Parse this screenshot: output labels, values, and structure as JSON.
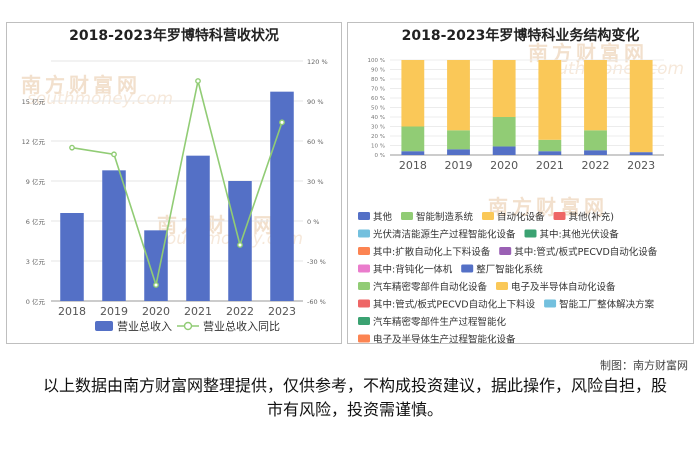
{
  "watermark": {
    "text": "南方财富网",
    "site": "southmoney.com"
  },
  "credit": "制图：南方财富网",
  "disclaimer": "以上数据由南方财富网整理提供，仅供参考，不构成投资建议，据此操作，风险自担，股市有风险，投资需谨慎。",
  "colors": {
    "bar": "#5470c6",
    "line": "#91cc75"
  },
  "chart_data": [
    {
      "type": "bar+line",
      "title": "2018-2023年罗博特科营收状况",
      "categories": [
        "2018",
        "2019",
        "2020",
        "2021",
        "2022",
        "2023"
      ],
      "series": [
        {
          "name": "营业总收入",
          "type": "bar",
          "axis": "left",
          "values": [
            6.6,
            9.8,
            5.3,
            10.9,
            9.0,
            15.7
          ]
        },
        {
          "name": "营业总收入同比",
          "type": "line",
          "axis": "right",
          "values": [
            55,
            50,
            -48,
            105,
            -18,
            74
          ]
        }
      ],
      "left_axis": {
        "ticks": [
          0,
          3,
          6,
          9,
          12,
          15
        ],
        "tick_labels": [
          "0 亿元",
          "3 亿元",
          "6 亿元",
          "9 亿元",
          "12 亿元",
          "15 亿元"
        ],
        "ylim": [
          0,
          18
        ]
      },
      "right_axis": {
        "ticks": [
          -60,
          -30,
          0,
          30,
          60,
          90,
          120
        ],
        "tick_labels": [
          "-60 %",
          "-30 %",
          "0 %",
          "30 %",
          "60 %",
          "90 %",
          "120 %"
        ],
        "ylim": [
          -60,
          120
        ]
      },
      "grid": true,
      "legend_position": "bottom"
    },
    {
      "type": "stacked_bar",
      "title": "2018-2023年罗博特科业务结构变化",
      "categories": [
        "2018",
        "2019",
        "2020",
        "2021",
        "2022",
        "2023"
      ],
      "y_ticks": [
        0,
        10,
        20,
        30,
        40,
        50,
        60,
        70,
        80,
        90,
        100
      ],
      "y_tick_labels": [
        "0 %",
        "10 %",
        "20 %",
        "30 %",
        "40 %",
        "50 %",
        "60 %",
        "70 %",
        "80 %",
        "90 %",
        "100 %"
      ],
      "ylim": [
        0,
        100
      ],
      "series": [
        {
          "name": "其他",
          "color": "#5470c6",
          "values": [
            4,
            6,
            9,
            4,
            5,
            3
          ]
        },
        {
          "name": "智能制造系统",
          "color": "#91cc75",
          "values": [
            26,
            20,
            31,
            12,
            21,
            0
          ]
        },
        {
          "name": "自动化设备",
          "color": "#fac858",
          "values": [
            70,
            74,
            60,
            84,
            74,
            97
          ]
        },
        {
          "name": "其他(补充)",
          "color": "#ee6666",
          "values": [
            0,
            0,
            0,
            0,
            0,
            0
          ]
        },
        {
          "name": "光伏清洁能源生产过程智能化设备",
          "color": "#73c0de",
          "values": [
            0,
            0,
            0,
            0,
            0,
            0
          ]
        },
        {
          "name": "其中:其他光伏设备",
          "color": "#3ba272",
          "values": [
            0,
            0,
            0,
            0,
            0,
            0
          ]
        },
        {
          "name": "其中:扩散自动化上下料设备",
          "color": "#fc8452",
          "values": [
            0,
            0,
            0,
            0,
            0,
            0
          ]
        },
        {
          "name": "其中:管式/板式PECVD自动化设备",
          "color": "#9a60b4",
          "values": [
            0,
            0,
            0,
            0,
            0,
            0
          ]
        },
        {
          "name": "其中:背钝化一体机",
          "color": "#ea7ccc",
          "values": [
            0,
            0,
            0,
            0,
            0,
            0
          ]
        },
        {
          "name": "整厂智能化系统",
          "color": "#5470c6",
          "values": [
            0,
            0,
            0,
            0,
            0,
            0
          ]
        },
        {
          "name": "汽车精密零部件自动化设备",
          "color": "#91cc75",
          "values": [
            0,
            0,
            0,
            0,
            0,
            0
          ]
        },
        {
          "name": "电子及半导体自动化设备",
          "color": "#fac858",
          "values": [
            0,
            0,
            0,
            0,
            0,
            0
          ]
        },
        {
          "name": "其中:管式/板式PECVD自动化上下料设",
          "color": "#ee6666",
          "values": [
            0,
            0,
            0,
            0,
            0,
            0
          ]
        },
        {
          "name": "智能工厂整体解决方案",
          "color": "#73c0de",
          "values": [
            0,
            0,
            0,
            0,
            0,
            0
          ]
        },
        {
          "name": "汽车精密零部件生产过程智能化",
          "color": "#3ba272",
          "values": [
            0,
            0,
            0,
            0,
            0,
            0
          ]
        },
        {
          "name": "电子及半导体生产过程智能化设备",
          "color": "#fc8452",
          "values": [
            0,
            0,
            0,
            0,
            0,
            0
          ]
        }
      ],
      "grid": true,
      "legend_position": "bottom"
    }
  ]
}
